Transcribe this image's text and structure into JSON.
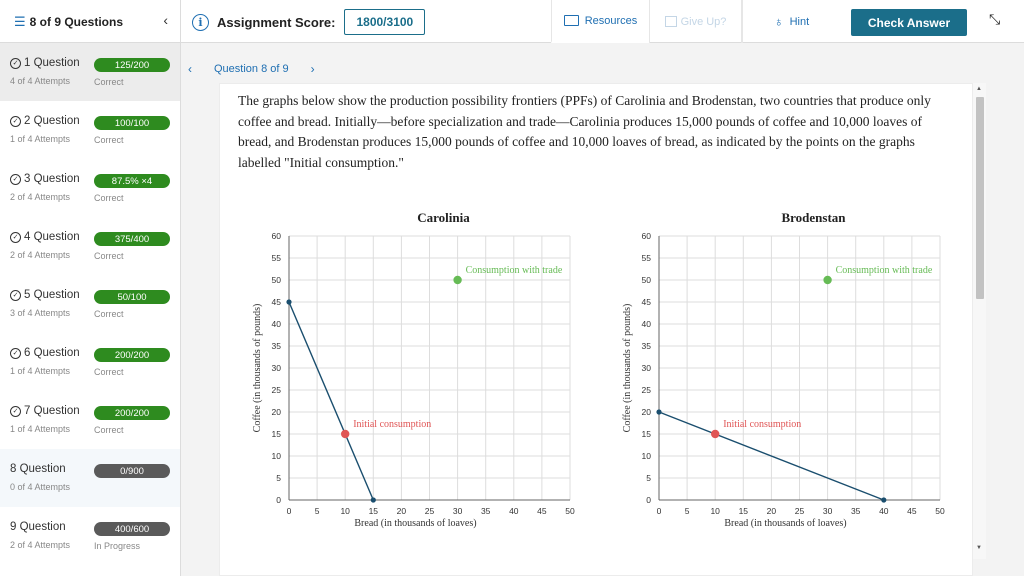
{
  "topbar": {
    "question_count": "8 of 9 Questions",
    "score_label": "Assignment Score:",
    "score_value": "1800/3100",
    "resources": "Resources",
    "give_up": "Give Up?",
    "hint": "Hint",
    "check_answer": "Check Answer"
  },
  "sidebar": {
    "items": [
      {
        "title": "1 Question",
        "attempts": "4 of 4 Attempts",
        "score": "125/200",
        "status": "Correct",
        "pill": "green",
        "done": true
      },
      {
        "title": "2 Question",
        "attempts": "1 of 4 Attempts",
        "score": "100/100",
        "status": "Correct",
        "pill": "green",
        "done": true
      },
      {
        "title": "3 Question",
        "attempts": "2 of 4 Attempts",
        "score": "87.5%  ×4",
        "status": "Correct",
        "pill": "green",
        "done": true
      },
      {
        "title": "4 Question",
        "attempts": "2 of 4 Attempts",
        "score": "375/400",
        "status": "Correct",
        "pill": "green",
        "done": true
      },
      {
        "title": "5 Question",
        "attempts": "3 of 4 Attempts",
        "score": "50/100",
        "status": "Correct",
        "pill": "green",
        "done": true
      },
      {
        "title": "6 Question",
        "attempts": "1 of 4 Attempts",
        "score": "200/200",
        "status": "Correct",
        "pill": "green",
        "done": true
      },
      {
        "title": "7 Question",
        "attempts": "1 of 4 Attempts",
        "score": "200/200",
        "status": "Correct",
        "pill": "green",
        "done": true
      },
      {
        "title": "8 Question",
        "attempts": "0 of 4 Attempts",
        "score": "0/900",
        "status": "",
        "pill": "grey",
        "done": false
      },
      {
        "title": "9 Question",
        "attempts": "2 of 4 Attempts",
        "score": "400/600",
        "status": "In Progress",
        "pill": "grey",
        "done": false
      }
    ]
  },
  "main": {
    "question_nav": "Question 8 of 9",
    "prompt": "The graphs below show the production possibility frontiers (PPFs) of Carolinia and Brodenstan, two countries that produce only coffee and bread. Initially—before specialization and trade—Carolinia produces 15,000 pounds of coffee and 10,000 loaves of bread, and Brodenstan produces 15,000 pounds of coffee and 10,000 loaves of bread, as indicated by the points on the graphs labelled \"Initial consumption.\""
  },
  "chart_data": [
    {
      "type": "line",
      "title": "Carolinia",
      "xlabel": "Bread (in thousands of loaves)",
      "ylabel": "Coffee (in thousands of pounds)",
      "xlim": [
        0,
        50
      ],
      "ylim": [
        0,
        60
      ],
      "xticks": [
        0,
        5,
        10,
        15,
        20,
        25,
        30,
        35,
        40,
        45,
        50
      ],
      "yticks": [
        0,
        5,
        10,
        15,
        20,
        25,
        30,
        35,
        40,
        45,
        50,
        55,
        60
      ],
      "grid": true,
      "ppf": [
        [
          0,
          45
        ],
        [
          15,
          0
        ]
      ],
      "points": [
        {
          "name": "Initial consumption",
          "x": 10,
          "y": 15,
          "color": "#e05555"
        },
        {
          "name": "Consumption with trade",
          "x": 30,
          "y": 50,
          "color": "#66bb55"
        }
      ],
      "line_color": "#1a4e6e"
    },
    {
      "type": "line",
      "title": "Brodenstan",
      "xlabel": "Bread (in thousands of loaves)",
      "ylabel": "Coffee (in thousands of pounds)",
      "xlim": [
        0,
        50
      ],
      "ylim": [
        0,
        60
      ],
      "xticks": [
        0,
        5,
        10,
        15,
        20,
        25,
        30,
        35,
        40,
        45,
        50
      ],
      "yticks": [
        0,
        5,
        10,
        15,
        20,
        25,
        30,
        35,
        40,
        45,
        50,
        55,
        60
      ],
      "grid": true,
      "ppf": [
        [
          0,
          20
        ],
        [
          40,
          0
        ]
      ],
      "points": [
        {
          "name": "Initial consumption",
          "x": 10,
          "y": 15,
          "color": "#e05555"
        },
        {
          "name": "Consumption with trade",
          "x": 30,
          "y": 50,
          "color": "#66bb55"
        }
      ],
      "line_color": "#1a4e6e"
    }
  ]
}
